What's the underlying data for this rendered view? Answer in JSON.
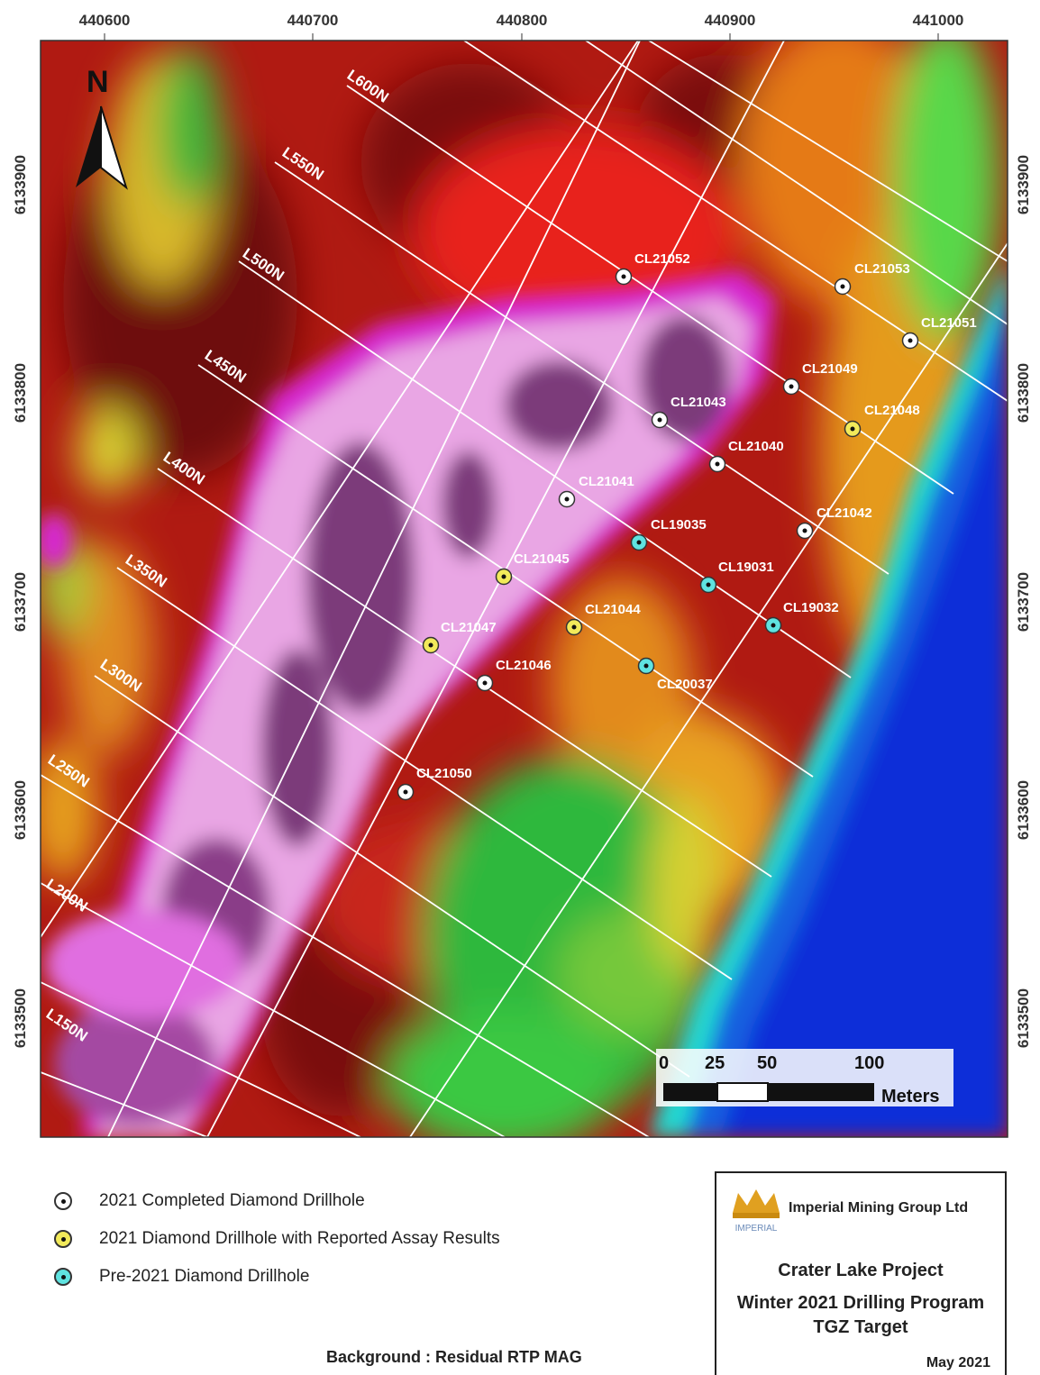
{
  "map": {
    "x_ticks": [
      "440600",
      "440700",
      "440800",
      "440900",
      "441000"
    ],
    "y_ticks": [
      "6133900",
      "6133800",
      "6133700",
      "6133600",
      "6133500"
    ],
    "north_label": "N",
    "grid_lines": [
      "L600N",
      "L550N",
      "L500N",
      "L450N",
      "L400N",
      "L350N",
      "L300N",
      "L250N",
      "L200N",
      "L150N"
    ],
    "drillholes": [
      {
        "id": "CL21052",
        "type": "completed"
      },
      {
        "id": "CL21053",
        "type": "completed"
      },
      {
        "id": "CL21051",
        "type": "completed"
      },
      {
        "id": "CL21049",
        "type": "completed"
      },
      {
        "id": "CL21048",
        "type": "assay"
      },
      {
        "id": "CL21043",
        "type": "completed"
      },
      {
        "id": "CL21040",
        "type": "completed"
      },
      {
        "id": "CL21041",
        "type": "completed"
      },
      {
        "id": "CL21042",
        "type": "completed"
      },
      {
        "id": "CL19035",
        "type": "pre2021"
      },
      {
        "id": "CL19031",
        "type": "pre2021"
      },
      {
        "id": "CL21045",
        "type": "assay"
      },
      {
        "id": "CL19032",
        "type": "pre2021"
      },
      {
        "id": "CL21044",
        "type": "assay"
      },
      {
        "id": "CL21047",
        "type": "assay"
      },
      {
        "id": "CL21046",
        "type": "completed"
      },
      {
        "id": "CL20037",
        "type": "pre2021"
      },
      {
        "id": "CL21050",
        "type": "completed"
      }
    ],
    "scale_bar": {
      "labels": [
        "0",
        "25",
        "50",
        "100"
      ],
      "unit": "Meters"
    }
  },
  "colors": {
    "completed": "#ffffff",
    "assay": "#f2ea5a",
    "pre2021": "#5fe3e0"
  },
  "legend": [
    {
      "label": "2021 Completed Diamond Drillhole",
      "color": "#ffffff"
    },
    {
      "label": "2021 Diamond Drillhole with Reported Assay Results",
      "color": "#f2ea5a"
    },
    {
      "label": "Pre-2021 Diamond Drillhole",
      "color": "#5fe3e0"
    }
  ],
  "background_note": "Background : Residual RTP MAG",
  "title_block": {
    "company": "Imperial Mining Group Ltd",
    "logo_text": "IMPERIAL",
    "project": "Crater Lake Project",
    "program": "Winter 2021 Drilling Program",
    "target": "TGZ Target",
    "date": "May 2021"
  }
}
